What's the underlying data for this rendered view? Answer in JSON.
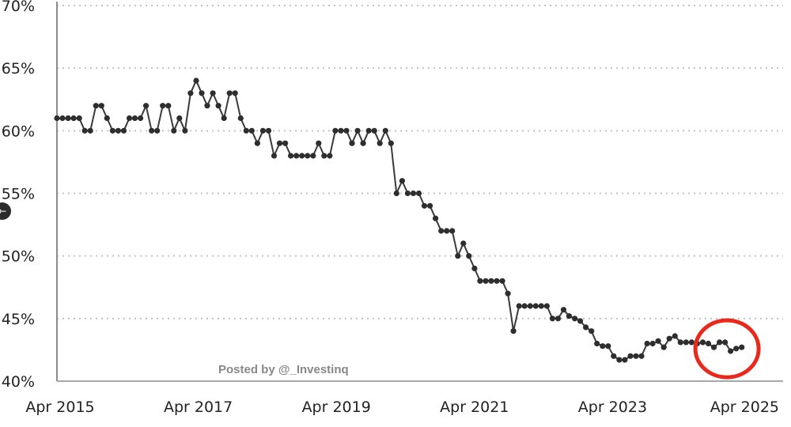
{
  "colors": {
    "line": "#3a3a3a",
    "marker": "#2e2e2e",
    "grid": "#c4c4c4",
    "axis": "#8c8c8c",
    "highlight": "#e8291c",
    "text": "#222222",
    "watermark": "#888888"
  },
  "watermark": "Posted by @_Investinq",
  "nav_icon": "arrow-left-icon",
  "chart_data": {
    "type": "line",
    "title": "",
    "xlabel": "",
    "ylabel": "",
    "grid": true,
    "x_ticks": [
      "Apr 2015",
      "Apr 2017",
      "Apr 2019",
      "Apr 2021",
      "Apr 2023",
      "Apr 2025"
    ],
    "y_ticks": [
      "40%",
      "45%",
      "50%",
      "55%",
      "60%",
      "65%",
      "70%"
    ],
    "ylim": [
      40,
      70
    ],
    "x_range": [
      "2015-04",
      "2025-04"
    ],
    "x_unit": "monthly observations",
    "highlight": {
      "shape": "circle",
      "around": "latest values (2024–2025)"
    },
    "series": [
      {
        "x_start": "2015-04",
        "values": [
          61,
          61,
          61,
          61,
          61,
          60,
          60,
          62,
          62,
          61,
          60,
          60,
          60,
          61,
          61,
          61,
          62,
          60,
          60,
          62,
          62,
          60,
          61,
          60,
          63,
          64,
          63,
          62,
          63,
          62,
          61,
          63,
          63,
          61,
          60,
          60,
          59,
          60,
          60,
          58,
          59,
          59,
          58,
          58,
          58,
          58,
          58,
          59,
          58,
          58,
          60,
          60,
          60,
          59,
          60,
          59,
          60,
          60,
          59,
          60,
          59,
          55,
          56,
          55,
          55,
          55,
          54,
          54,
          53,
          52,
          52,
          52,
          50,
          51,
          50,
          49,
          48,
          48,
          48,
          48,
          48,
          47,
          44,
          46,
          46,
          46,
          46,
          46,
          46,
          45,
          45,
          45.7,
          45.2,
          45,
          44.8,
          44.3,
          44,
          43,
          42.8,
          42.8,
          42,
          41.7,
          41.7,
          42,
          42,
          42,
          43,
          43,
          43.2,
          42.7,
          43.4,
          43.6,
          43.1,
          43.1,
          43.1,
          43,
          43.1,
          43,
          42.7,
          43.1,
          43.1,
          42.4,
          42.6,
          42.7
        ]
      }
    ]
  }
}
